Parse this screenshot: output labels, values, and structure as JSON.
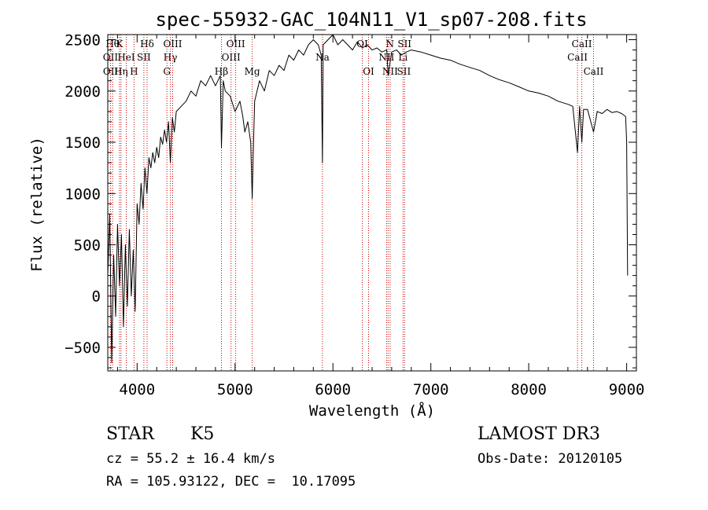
{
  "chart_data": {
    "type": "line",
    "title": "spec-55932-GAC_104N11_V1_sp07-208.fits",
    "xlabel": "Wavelength (Å)",
    "ylabel": "Flux (relative)",
    "xlim": [
      3700,
      9100
    ],
    "ylim": [
      -730,
      2550
    ],
    "xticks": [
      4000,
      5000,
      6000,
      7000,
      8000,
      9000
    ],
    "yticks": [
      -500,
      0,
      500,
      1000,
      1500,
      2000,
      2500
    ],
    "grid": false,
    "series": [
      {
        "name": "flux",
        "x": [
          3700,
          3720,
          3740,
          3760,
          3780,
          3800,
          3820,
          3840,
          3860,
          3880,
          3900,
          3920,
          3940,
          3960,
          3980,
          4000,
          4020,
          4040,
          4060,
          4080,
          4100,
          4120,
          4140,
          4160,
          4180,
          4200,
          4220,
          4240,
          4260,
          4280,
          4300,
          4320,
          4340,
          4360,
          4380,
          4400,
          4450,
          4500,
          4550,
          4600,
          4650,
          4700,
          4750,
          4800,
          4850,
          4861,
          4880,
          4900,
          4950,
          5000,
          5050,
          5080,
          5100,
          5130,
          5160,
          5175,
          5185,
          5200,
          5250,
          5300,
          5350,
          5400,
          5450,
          5500,
          5550,
          5600,
          5650,
          5700,
          5750,
          5800,
          5850,
          5880,
          5893,
          5900,
          5950,
          6000,
          6050,
          6100,
          6150,
          6200,
          6250,
          6300,
          6350,
          6400,
          6450,
          6500,
          6550,
          6563,
          6600,
          6650,
          6700,
          6750,
          6800,
          6900,
          7000,
          7100,
          7200,
          7300,
          7400,
          7500,
          7600,
          7700,
          7800,
          7900,
          8000,
          8100,
          8200,
          8300,
          8400,
          8450,
          8498,
          8520,
          8542,
          8560,
          8600,
          8662,
          8700,
          8750,
          8800,
          8850,
          8900,
          8950,
          8990,
          9000,
          9010
        ],
        "values": [
          200,
          800,
          -650,
          400,
          -200,
          700,
          100,
          600,
          -300,
          500,
          -100,
          650,
          0,
          450,
          -150,
          900,
          700,
          1100,
          850,
          1250,
          1000,
          1350,
          1250,
          1400,
          1300,
          1450,
          1350,
          1550,
          1480,
          1620,
          1500,
          1700,
          1300,
          1740,
          1600,
          1800,
          1850,
          1900,
          2000,
          1950,
          2100,
          2050,
          2150,
          2050,
          2150,
          1450,
          2100,
          2000,
          1950,
          1800,
          1900,
          1750,
          1600,
          1700,
          1500,
          950,
          1350,
          1900,
          2100,
          2000,
          2200,
          2150,
          2250,
          2200,
          2350,
          2300,
          2400,
          2350,
          2450,
          2500,
          2450,
          2350,
          1300,
          2450,
          2500,
          2550,
          2450,
          2500,
          2450,
          2400,
          2480,
          2420,
          2450,
          2400,
          2420,
          2380,
          2400,
          2150,
          2380,
          2400,
          2350,
          2380,
          2400,
          2380,
          2350,
          2320,
          2300,
          2260,
          2230,
          2200,
          2150,
          2110,
          2080,
          2040,
          2000,
          1980,
          1950,
          1900,
          1870,
          1850,
          1400,
          1850,
          1500,
          1820,
          1820,
          1600,
          1800,
          1780,
          1820,
          1790,
          1800,
          1780,
          1750,
          1500,
          200
        ]
      }
    ],
    "line_markers": [
      {
        "wl": 3750,
        "label": "Hθ",
        "row": 0
      },
      {
        "wl": 3820,
        "label": "K",
        "row": 0
      },
      {
        "wl": 4102,
        "label": "Hδ",
        "row": 0
      },
      {
        "wl": 4363,
        "label": "OIII",
        "row": 0
      },
      {
        "wl": 5007,
        "label": "OIII",
        "row": 0
      },
      {
        "wl": 6300,
        "label": "OI",
        "row": 0
      },
      {
        "wl": 6583,
        "label": "N",
        "row": 0
      },
      {
        "wl": 6731,
        "label": "SII",
        "row": 0
      },
      {
        "wl": 8542,
        "label": "CaII",
        "row": 0
      },
      {
        "wl": 3727,
        "label": "OII",
        "row": 1
      },
      {
        "wl": 3889,
        "label": "HeI",
        "row": 1
      },
      {
        "wl": 4069,
        "label": "SII",
        "row": 1
      },
      {
        "wl": 4340,
        "label": "Hγ",
        "row": 1
      },
      {
        "wl": 4959,
        "label": "OIII",
        "row": 1
      },
      {
        "wl": 5893,
        "label": "Na",
        "row": 1
      },
      {
        "wl": 6548,
        "label": "NII",
        "row": 1
      },
      {
        "wl": 6716,
        "label": "Li",
        "row": 1
      },
      {
        "wl": 8498,
        "label": "CaII",
        "row": 1
      },
      {
        "wl": 3729,
        "label": "OII",
        "row": 2
      },
      {
        "wl": 3835,
        "label": "Hη",
        "row": 2
      },
      {
        "wl": 3968,
        "label": "H",
        "row": 2
      },
      {
        "wl": 4304,
        "label": "G",
        "row": 2
      },
      {
        "wl": 4861,
        "label": "Hβ",
        "row": 2
      },
      {
        "wl": 5175,
        "label": "Mg",
        "row": 2
      },
      {
        "wl": 6364,
        "label": "OI",
        "row": 2
      },
      {
        "wl": 6584,
        "label": "NII",
        "row": 2
      },
      {
        "wl": 6725,
        "label": "SII",
        "row": 2
      },
      {
        "wl": 8662,
        "label": "CaII",
        "row": 2
      }
    ],
    "marker_lines": [
      3727,
      3750,
      3820,
      3835,
      3889,
      3968,
      4069,
      4102,
      4304,
      4340,
      4363,
      4861,
      4959,
      5007,
      5175,
      5893,
      6300,
      6364,
      6548,
      6563,
      6584,
      6716,
      6731,
      8498,
      8542,
      8662
    ]
  },
  "info": {
    "object_class": "STAR",
    "subclass": "K5",
    "cz": "cz = 55.2 ± 16.4 km/s",
    "coords": "RA = 105.93122, DEC =  10.17095",
    "survey": "LAMOST DR3",
    "obs_date": "Obs-Date: 20120105"
  },
  "colors": {
    "axis": "#000000",
    "spectrum": "#000000",
    "marker_line": "#cc0000",
    "background": "#ffffff"
  }
}
